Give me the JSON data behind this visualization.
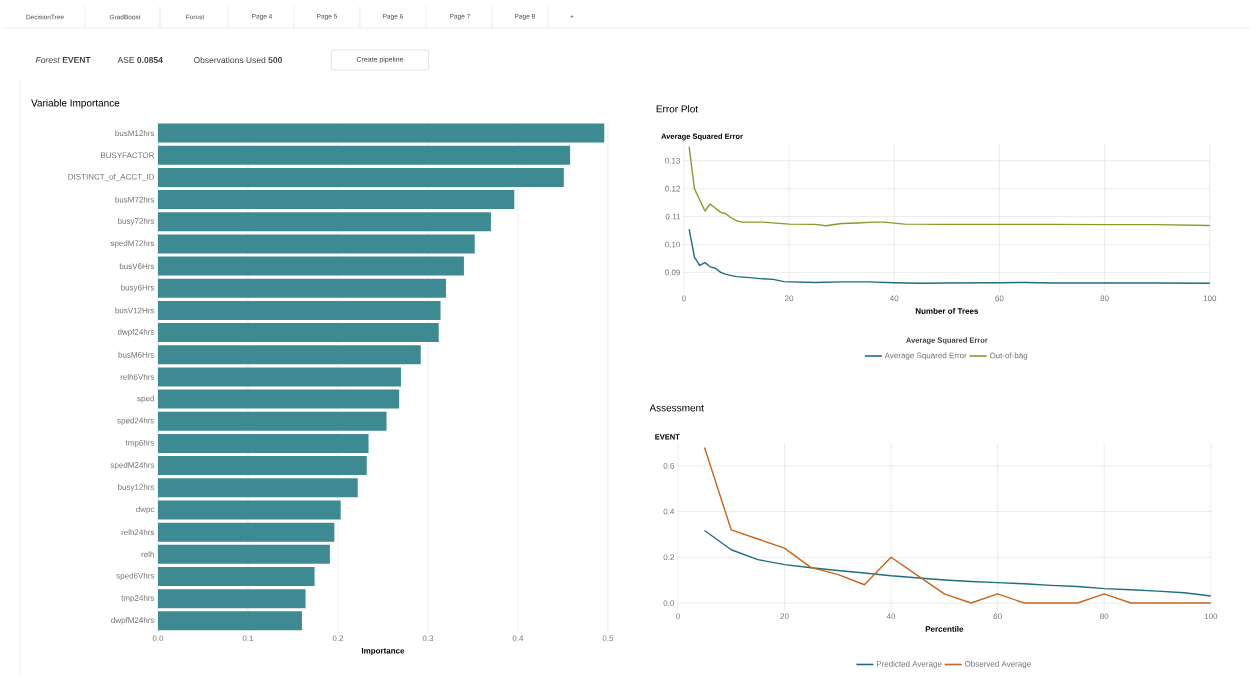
{
  "chart_data": [
    {
      "type": "other",
      "annotations": [
        "DecisionTree",
        "GradBoost",
        "Forest",
        "Page 4",
        "Page 5",
        "Page 6",
        "Page 7",
        "Page 8",
        "+",
        "*Forest* **EVENT**",
        "ASE **0.0854**",
        "Observations Used **500**",
        "Create pipeline"
      ]
    },
    {
      "type": "bar",
      "orientation": "horizontal",
      "title": "Variable Importance",
      "xlabel": "Importance",
      "color": "#3d8a92",
      "grid": "x",
      "categories": [
        "busM12hrs",
        "BUSYFACTOR",
        "DISTINCT_of_ACCT_ID",
        "busM72hrs",
        "busy72hrs",
        "spedM72hrs",
        "busV6Hrs",
        "busy6Hrs",
        "busV12Hrs",
        "dwpf24hrs",
        "busM6Hrs",
        "relh6Vhrs",
        "sped",
        "sped24hrs",
        "tmp6hrs",
        "spedM24hrs",
        "busy12hrs",
        "dwpc",
        "relh24hrs",
        "relh",
        "sped6Vhrs",
        "tmp24hrs",
        "dwpfM24hrs"
      ],
      "values": [
        0.496,
        0.458,
        0.451,
        0.396,
        0.37,
        0.352,
        0.34,
        0.32,
        0.314,
        0.312,
        0.292,
        0.27,
        0.268,
        0.254,
        0.234,
        0.232,
        0.222,
        0.203,
        0.196,
        0.191,
        0.174,
        0.164,
        0.16
      ],
      "xlim": [
        0,
        0.5
      ],
      "xticks": [
        {
          "value": 0,
          "label": "0.0"
        },
        0.1,
        0.2,
        0.3,
        0.4,
        0.5
      ]
    },
    {
      "type": "line",
      "title": "Error Plot",
      "ylabel": "Average Squared Error",
      "xlabel": "Number of Trees",
      "legend_title": "Average Squared Error",
      "legend": "bottom",
      "grid": true,
      "xlim": [
        0,
        100
      ],
      "xticks": [
        0,
        20,
        40,
        60,
        80,
        100
      ],
      "ylim": [
        0.083,
        0.136
      ],
      "yticks": [
        0.09,
        {
          "value": 0.1,
          "label": "0.10"
        },
        0.11,
        0.12,
        0.13
      ],
      "series": [
        {
          "name": "Average Squared Error",
          "color": "#1e6e7c",
          "x": [
            1,
            2,
            3,
            4,
            5,
            6,
            7,
            8,
            10,
            12,
            15,
            17,
            19,
            25,
            30,
            35,
            40,
            45,
            50,
            60,
            65,
            70,
            80,
            90,
            100
          ],
          "values": [
            0.1055,
            0.0955,
            0.0925,
            0.0935,
            0.092,
            0.0915,
            0.09,
            0.0893,
            0.0885,
            0.0882,
            0.0877,
            0.0875,
            0.0867,
            0.0864,
            0.0866,
            0.0866,
            0.0863,
            0.0861,
            0.0862,
            0.0863,
            0.0864,
            0.0862,
            0.0862,
            0.0862,
            0.0861
          ]
        },
        {
          "name": "Out-of-bag",
          "color": "#8a9a2c",
          "x": [
            1,
            2,
            3,
            4,
            5,
            6,
            7,
            8,
            9,
            10,
            11,
            13,
            15,
            20,
            25,
            27,
            30,
            33,
            36,
            38,
            42,
            50,
            60,
            70,
            80,
            90,
            100
          ],
          "values": [
            0.135,
            0.12,
            0.116,
            0.112,
            0.1145,
            0.113,
            0.1115,
            0.111,
            0.1095,
            0.1085,
            0.108,
            0.108,
            0.108,
            0.1073,
            0.1072,
            0.1067,
            0.1075,
            0.1077,
            0.108,
            0.108,
            0.1073,
            0.1072,
            0.1072,
            0.1072,
            0.1071,
            0.1071,
            0.1068
          ]
        }
      ]
    },
    {
      "type": "line",
      "title": "Assessment",
      "ylabel": "EVENT",
      "xlabel": "Percentile",
      "legend": "bottom",
      "grid": true,
      "xlim": [
        0,
        100
      ],
      "xticks": [
        0,
        20,
        40,
        60,
        80,
        100
      ],
      "ylim": [
        -0.03,
        0.7
      ],
      "yticks": [
        {
          "value": 0,
          "label": "0.0"
        },
        0.2,
        0.4,
        0.6
      ],
      "x": [
        5,
        10,
        15,
        20,
        25,
        30,
        35,
        40,
        45,
        50,
        55,
        60,
        65,
        70,
        75,
        80,
        85,
        90,
        95,
        100
      ],
      "series": [
        {
          "name": "Predicted Average",
          "color": "#1e6e7c",
          "values": [
            0.317,
            0.233,
            0.19,
            0.168,
            0.154,
            0.142,
            0.131,
            0.119,
            0.11,
            0.101,
            0.094,
            0.089,
            0.084,
            0.077,
            0.072,
            0.063,
            0.058,
            0.052,
            0.045,
            0.031
          ]
        },
        {
          "name": "Observed Average",
          "color": "#c8641b",
          "values": [
            0.68,
            0.32,
            0.28,
            0.24,
            0.155,
            0.125,
            0.08,
            0.2,
            0.12,
            0.04,
            0,
            0.04,
            0,
            0,
            0,
            0.04,
            0,
            0,
            0,
            0
          ]
        }
      ]
    }
  ]
}
